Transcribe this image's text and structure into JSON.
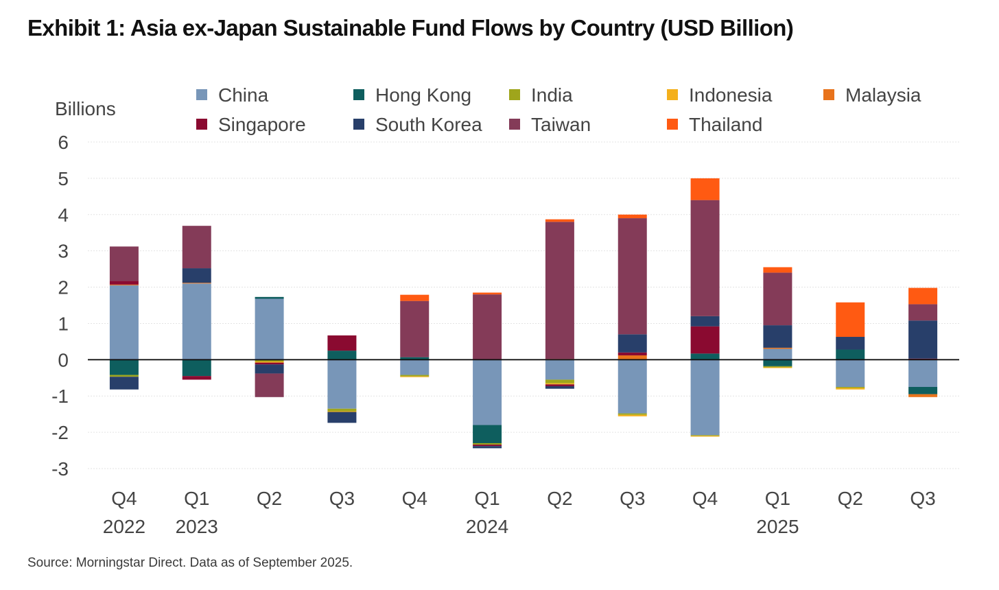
{
  "title": "Exhibit 1: Asia ex-Japan Sustainable Fund Flows by Country (USD Billion)",
  "source": "Source: Morningstar Direct. Data as of September 2025.",
  "chart_data": {
    "type": "bar",
    "stacked": true,
    "title": "Exhibit 1: Asia ex-Japan Sustainable Fund Flows by Country (USD Billion)",
    "ylabel": "Billions",
    "xlabel": "",
    "ylim": [
      -3,
      6
    ],
    "yticks": [
      -3,
      -2,
      -1,
      0,
      1,
      2,
      3,
      4,
      5,
      6
    ],
    "grid": true,
    "legend_position": "top",
    "categories": [
      {
        "quarter": "Q4",
        "year": "2022"
      },
      {
        "quarter": "Q1",
        "year": "2023"
      },
      {
        "quarter": "Q2",
        "year": ""
      },
      {
        "quarter": "Q3",
        "year": ""
      },
      {
        "quarter": "Q4",
        "year": ""
      },
      {
        "quarter": "Q1",
        "year": "2024"
      },
      {
        "quarter": "Q2",
        "year": ""
      },
      {
        "quarter": "Q3",
        "year": ""
      },
      {
        "quarter": "Q4",
        "year": ""
      },
      {
        "quarter": "Q1",
        "year": "2025"
      },
      {
        "quarter": "Q2",
        "year": ""
      },
      {
        "quarter": "Q3",
        "year": ""
      }
    ],
    "series": [
      {
        "name": "China",
        "color": "#7896b8",
        "values": [
          2.05,
          2.1,
          1.68,
          -1.35,
          -0.42,
          -1.8,
          -0.55,
          -1.48,
          -2.08,
          0.3,
          -0.75,
          -0.75
        ]
      },
      {
        "name": "Hong Kong",
        "color": "#0e5e5e",
        "values": [
          -0.42,
          -0.45,
          0.05,
          0.25,
          0.07,
          -0.5,
          0.0,
          0.0,
          0.17,
          -0.18,
          0.28,
          -0.2
        ]
      },
      {
        "name": "India",
        "color": "#9fa51c",
        "values": [
          -0.05,
          0.0,
          -0.05,
          -0.07,
          -0.04,
          -0.04,
          -0.1,
          -0.04,
          -0.02,
          -0.03,
          -0.03,
          0.0
        ]
      },
      {
        "name": "Indonesia",
        "color": "#f4b01c",
        "values": [
          0.0,
          0.0,
          -0.03,
          -0.02,
          -0.02,
          0.0,
          -0.03,
          -0.04,
          -0.02,
          -0.02,
          -0.04,
          0.0
        ]
      },
      {
        "name": "Malaysia",
        "color": "#e8731c",
        "values": [
          0.02,
          0.02,
          0.0,
          0.0,
          0.0,
          0.0,
          0.02,
          0.12,
          0.0,
          0.03,
          0.0,
          -0.08
        ]
      },
      {
        "name": "Singapore",
        "color": "#8a0a30",
        "values": [
          0.1,
          -0.1,
          -0.05,
          0.42,
          0.0,
          -0.04,
          -0.05,
          0.08,
          0.75,
          0.0,
          0.0,
          0.03
        ]
      },
      {
        "name": "South Korea",
        "color": "#283f6a",
        "values": [
          -0.35,
          0.4,
          -0.25,
          -0.3,
          0.0,
          -0.06,
          -0.07,
          0.5,
          0.28,
          0.62,
          0.35,
          1.05
        ]
      },
      {
        "name": "Taiwan",
        "color": "#843b58",
        "values": [
          0.95,
          1.17,
          -0.65,
          0.0,
          1.55,
          1.8,
          3.78,
          3.2,
          3.2,
          1.45,
          0.0,
          0.45
        ]
      },
      {
        "name": "Thailand",
        "color": "#ff5a12",
        "values": [
          0.0,
          0.0,
          0.0,
          0.0,
          0.17,
          0.05,
          0.07,
          0.1,
          0.6,
          0.15,
          0.95,
          0.45
        ]
      }
    ]
  }
}
